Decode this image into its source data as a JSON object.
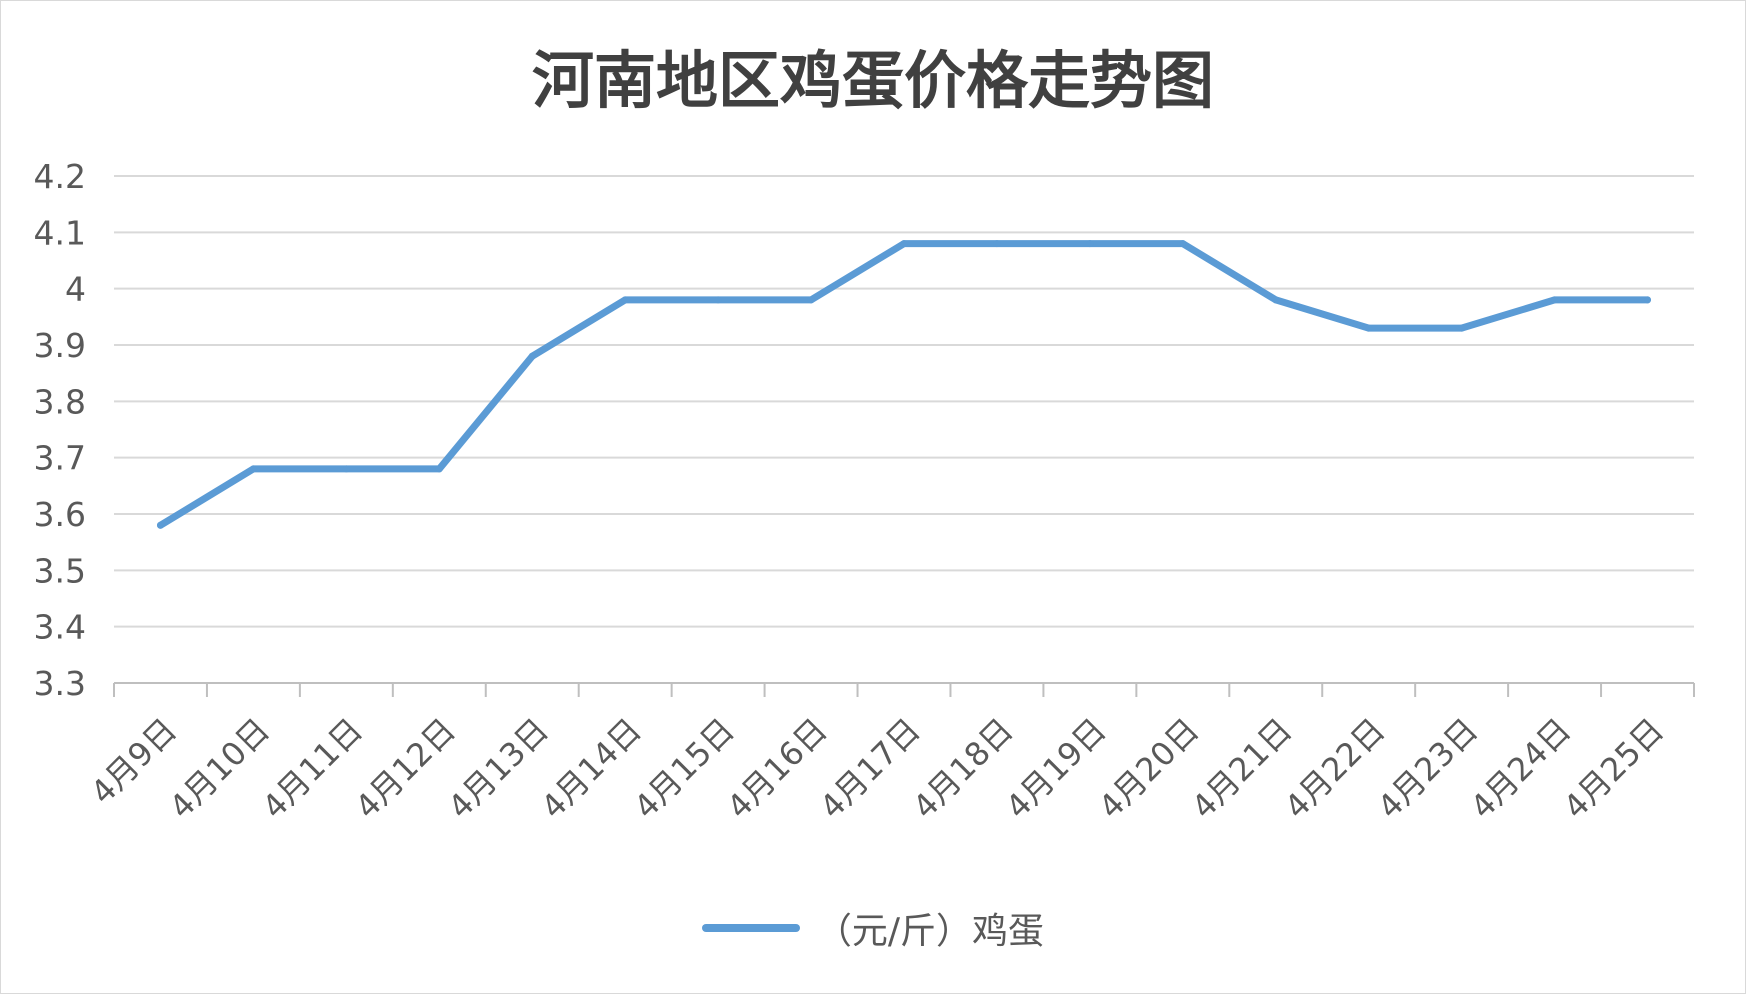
{
  "chart_data": {
    "type": "line",
    "title": "河南地区鸡蛋价格走势图",
    "xlabel": "",
    "ylabel": "",
    "categories": [
      "4月9日",
      "4月10日",
      "4月11日",
      "4月12日",
      "4月13日",
      "4月14日",
      "4月15日",
      "4月16日",
      "4月17日",
      "4月18日",
      "4月19日",
      "4月20日",
      "4月21日",
      "4月22日",
      "4月23日",
      "4月24日",
      "4月25日"
    ],
    "series": [
      {
        "name": "（元/斤）鸡蛋",
        "color": "#5b9bd5",
        "values": [
          3.58,
          3.68,
          3.68,
          3.68,
          3.88,
          3.98,
          3.98,
          3.98,
          4.08,
          4.08,
          4.08,
          4.08,
          3.98,
          3.93,
          3.93,
          3.98,
          3.98
        ]
      }
    ],
    "yticks": [
      "4.2",
      "4.1",
      "4",
      "3.9",
      "3.8",
      "3.7",
      "3.6",
      "3.5",
      "3.4",
      "3.3"
    ],
    "ylim": [
      3.3,
      4.2
    ],
    "grid": true,
    "legend_position": "bottom"
  }
}
